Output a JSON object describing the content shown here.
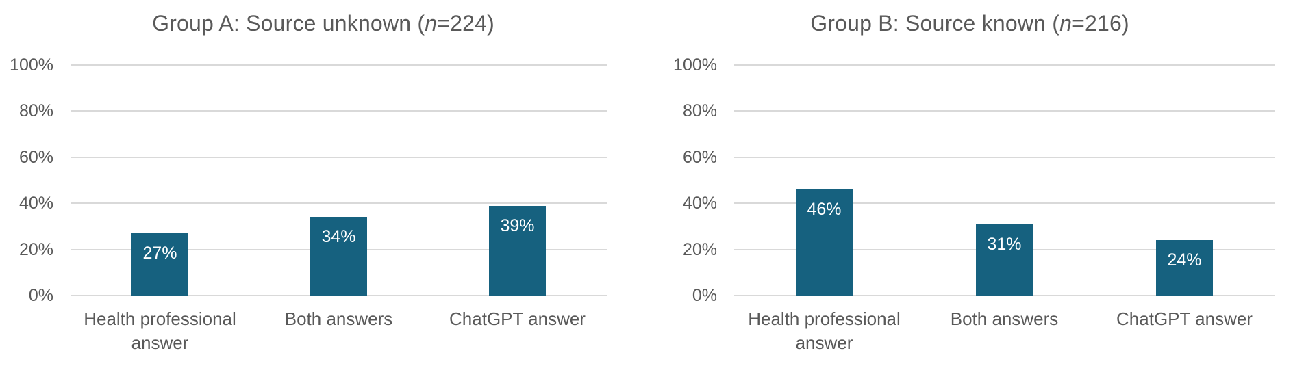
{
  "figure": {
    "background": "#ffffff"
  },
  "styles": {
    "title_color": "#595959",
    "axis_label_color": "#595959",
    "category_label_color": "#595959",
    "gridline_color": "#d9d9d9",
    "value_label_color": "#ffffff"
  },
  "chart_data": [
    {
      "type": "bar",
      "title": "Group A: Source unknown (n=224)",
      "title_parts": {
        "before": "Group A: Source unknown (",
        "n": "n",
        "after": "=224)"
      },
      "categories": [
        "Health professional answer",
        "Both answers",
        "ChatGPT answer"
      ],
      "values": [
        27,
        34,
        39
      ],
      "value_labels": [
        "27%",
        "34%",
        "39%"
      ],
      "xlabel": "",
      "ylabel": "",
      "ylim": [
        0,
        100
      ],
      "yticks": [
        100,
        80,
        60,
        40,
        20,
        0
      ],
      "ytick_labels": [
        "100%",
        "80%",
        "60%",
        "40%",
        "20%",
        "0%"
      ],
      "grid": true,
      "legend": "none",
      "bar_color": "#16617f"
    },
    {
      "type": "bar",
      "title": "Group B: Source known (n=216)",
      "title_parts": {
        "before": "Group B: Source known (",
        "n": "n",
        "after": "=216)"
      },
      "categories": [
        "Health professional answer",
        "Both answers",
        "ChatGPT answer"
      ],
      "values": [
        46,
        31,
        24
      ],
      "value_labels": [
        "46%",
        "31%",
        "24%"
      ],
      "xlabel": "",
      "ylabel": "",
      "ylim": [
        0,
        100
      ],
      "yticks": [
        100,
        80,
        60,
        40,
        20,
        0
      ],
      "ytick_labels": [
        "100%",
        "80%",
        "60%",
        "40%",
        "20%",
        "0%"
      ],
      "grid": true,
      "legend": "none",
      "bar_color": "#16617f"
    }
  ]
}
